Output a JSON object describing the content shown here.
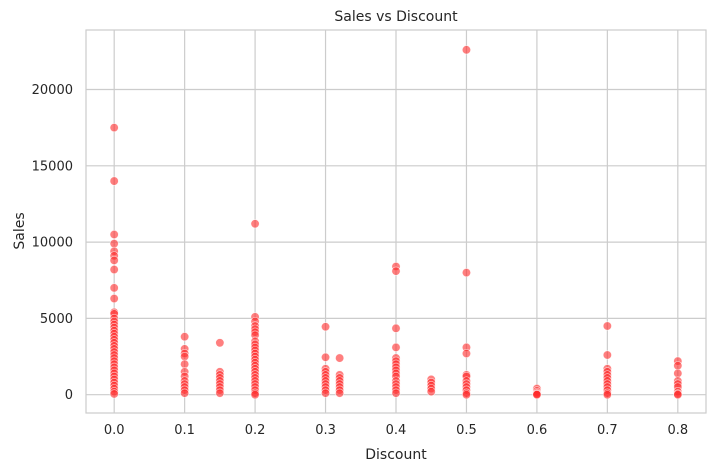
{
  "chart_data": {
    "type": "scatter",
    "title": "Sales vs Discount",
    "xlabel": "Discount",
    "ylabel": "Sales",
    "xlim": [
      -0.04,
      0.84
    ],
    "ylim": [
      -1200,
      23900
    ],
    "xticks": [
      0.0,
      0.1,
      0.2,
      0.3,
      0.4,
      0.5,
      0.6,
      0.7,
      0.8
    ],
    "xtick_labels": [
      "0.0",
      "0.1",
      "0.2",
      "0.3",
      "0.4",
      "0.5",
      "0.6",
      "0.7",
      "0.8"
    ],
    "yticks": [
      0,
      5000,
      10000,
      15000,
      20000
    ],
    "ytick_labels": [
      "0",
      "5000",
      "10000",
      "15000",
      "20000"
    ],
    "grid": true,
    "marker_color": "#ff2a2a",
    "marker_opacity": 0.6,
    "series": [
      {
        "points": [
          [
            0.0,
            17500
          ],
          [
            0.0,
            14000
          ],
          [
            0.0,
            10500
          ],
          [
            0.0,
            9900
          ],
          [
            0.0,
            9400
          ],
          [
            0.0,
            9100
          ],
          [
            0.0,
            8800
          ],
          [
            0.0,
            8200
          ],
          [
            0.0,
            7000
          ],
          [
            0.0,
            6300
          ],
          [
            0.0,
            5400
          ],
          [
            0.0,
            5300
          ],
          [
            0.0,
            5000
          ],
          [
            0.0,
            4800
          ],
          [
            0.0,
            4600
          ],
          [
            0.0,
            4400
          ],
          [
            0.0,
            4200
          ],
          [
            0.0,
            4000
          ],
          [
            0.0,
            3800
          ],
          [
            0.0,
            3600
          ],
          [
            0.0,
            3400
          ],
          [
            0.0,
            3200
          ],
          [
            0.0,
            3000
          ],
          [
            0.0,
            2800
          ],
          [
            0.0,
            2600
          ],
          [
            0.0,
            2400
          ],
          [
            0.0,
            2200
          ],
          [
            0.0,
            2000
          ],
          [
            0.0,
            1800
          ],
          [
            0.0,
            1600
          ],
          [
            0.0,
            1400
          ],
          [
            0.0,
            1200
          ],
          [
            0.0,
            1000
          ],
          [
            0.0,
            800
          ],
          [
            0.0,
            600
          ],
          [
            0.0,
            400
          ],
          [
            0.0,
            200
          ],
          [
            0.0,
            50
          ],
          [
            0.1,
            3800
          ],
          [
            0.1,
            3000
          ],
          [
            0.1,
            2700
          ],
          [
            0.1,
            2500
          ],
          [
            0.1,
            2000
          ],
          [
            0.1,
            1500
          ],
          [
            0.1,
            1200
          ],
          [
            0.1,
            900
          ],
          [
            0.1,
            700
          ],
          [
            0.1,
            500
          ],
          [
            0.1,
            300
          ],
          [
            0.1,
            100
          ],
          [
            0.15,
            3400
          ],
          [
            0.15,
            1500
          ],
          [
            0.15,
            1300
          ],
          [
            0.15,
            1100
          ],
          [
            0.15,
            900
          ],
          [
            0.15,
            700
          ],
          [
            0.15,
            500
          ],
          [
            0.15,
            300
          ],
          [
            0.15,
            100
          ],
          [
            0.2,
            11200
          ],
          [
            0.2,
            5100
          ],
          [
            0.2,
            4800
          ],
          [
            0.2,
            4500
          ],
          [
            0.2,
            4300
          ],
          [
            0.2,
            4100
          ],
          [
            0.2,
            3900
          ],
          [
            0.2,
            3500
          ],
          [
            0.2,
            3300
          ],
          [
            0.2,
            3100
          ],
          [
            0.2,
            2900
          ],
          [
            0.2,
            2700
          ],
          [
            0.2,
            2500
          ],
          [
            0.2,
            2300
          ],
          [
            0.2,
            2100
          ],
          [
            0.2,
            1900
          ],
          [
            0.2,
            1700
          ],
          [
            0.2,
            1500
          ],
          [
            0.2,
            1300
          ],
          [
            0.2,
            1100
          ],
          [
            0.2,
            900
          ],
          [
            0.2,
            700
          ],
          [
            0.2,
            500
          ],
          [
            0.2,
            300
          ],
          [
            0.2,
            100
          ],
          [
            0.2,
            0
          ],
          [
            0.3,
            4450
          ],
          [
            0.3,
            2450
          ],
          [
            0.3,
            1700
          ],
          [
            0.3,
            1500
          ],
          [
            0.3,
            1300
          ],
          [
            0.3,
            1100
          ],
          [
            0.3,
            900
          ],
          [
            0.3,
            700
          ],
          [
            0.3,
            500
          ],
          [
            0.3,
            300
          ],
          [
            0.3,
            100
          ],
          [
            0.32,
            2400
          ],
          [
            0.32,
            1300
          ],
          [
            0.32,
            1100
          ],
          [
            0.32,
            900
          ],
          [
            0.32,
            700
          ],
          [
            0.32,
            500
          ],
          [
            0.32,
            300
          ],
          [
            0.32,
            100
          ],
          [
            0.4,
            8400
          ],
          [
            0.4,
            8100
          ],
          [
            0.4,
            4350
          ],
          [
            0.4,
            3100
          ],
          [
            0.4,
            2400
          ],
          [
            0.4,
            2200
          ],
          [
            0.4,
            2000
          ],
          [
            0.4,
            1800
          ],
          [
            0.4,
            1600
          ],
          [
            0.4,
            1400
          ],
          [
            0.4,
            1200
          ],
          [
            0.4,
            900
          ],
          [
            0.4,
            700
          ],
          [
            0.4,
            500
          ],
          [
            0.4,
            300
          ],
          [
            0.4,
            100
          ],
          [
            0.45,
            1000
          ],
          [
            0.45,
            800
          ],
          [
            0.45,
            600
          ],
          [
            0.45,
            400
          ],
          [
            0.45,
            200
          ],
          [
            0.5,
            22600
          ],
          [
            0.5,
            8000
          ],
          [
            0.5,
            3100
          ],
          [
            0.5,
            2700
          ],
          [
            0.5,
            1300
          ],
          [
            0.5,
            1200
          ],
          [
            0.5,
            900
          ],
          [
            0.5,
            700
          ],
          [
            0.5,
            500
          ],
          [
            0.5,
            300
          ],
          [
            0.5,
            100
          ],
          [
            0.5,
            0
          ],
          [
            0.6,
            400
          ],
          [
            0.6,
            250
          ],
          [
            0.6,
            150
          ],
          [
            0.6,
            80
          ],
          [
            0.6,
            30
          ],
          [
            0.6,
            0
          ],
          [
            0.7,
            4500
          ],
          [
            0.7,
            2600
          ],
          [
            0.7,
            1700
          ],
          [
            0.7,
            1500
          ],
          [
            0.7,
            1300
          ],
          [
            0.7,
            1100
          ],
          [
            0.7,
            900
          ],
          [
            0.7,
            700
          ],
          [
            0.7,
            500
          ],
          [
            0.7,
            300
          ],
          [
            0.7,
            100
          ],
          [
            0.7,
            0
          ],
          [
            0.8,
            2200
          ],
          [
            0.8,
            1900
          ],
          [
            0.8,
            1400
          ],
          [
            0.8,
            900
          ],
          [
            0.8,
            700
          ],
          [
            0.8,
            500
          ],
          [
            0.8,
            200
          ],
          [
            0.8,
            50
          ],
          [
            0.8,
            0
          ]
        ]
      }
    ]
  }
}
